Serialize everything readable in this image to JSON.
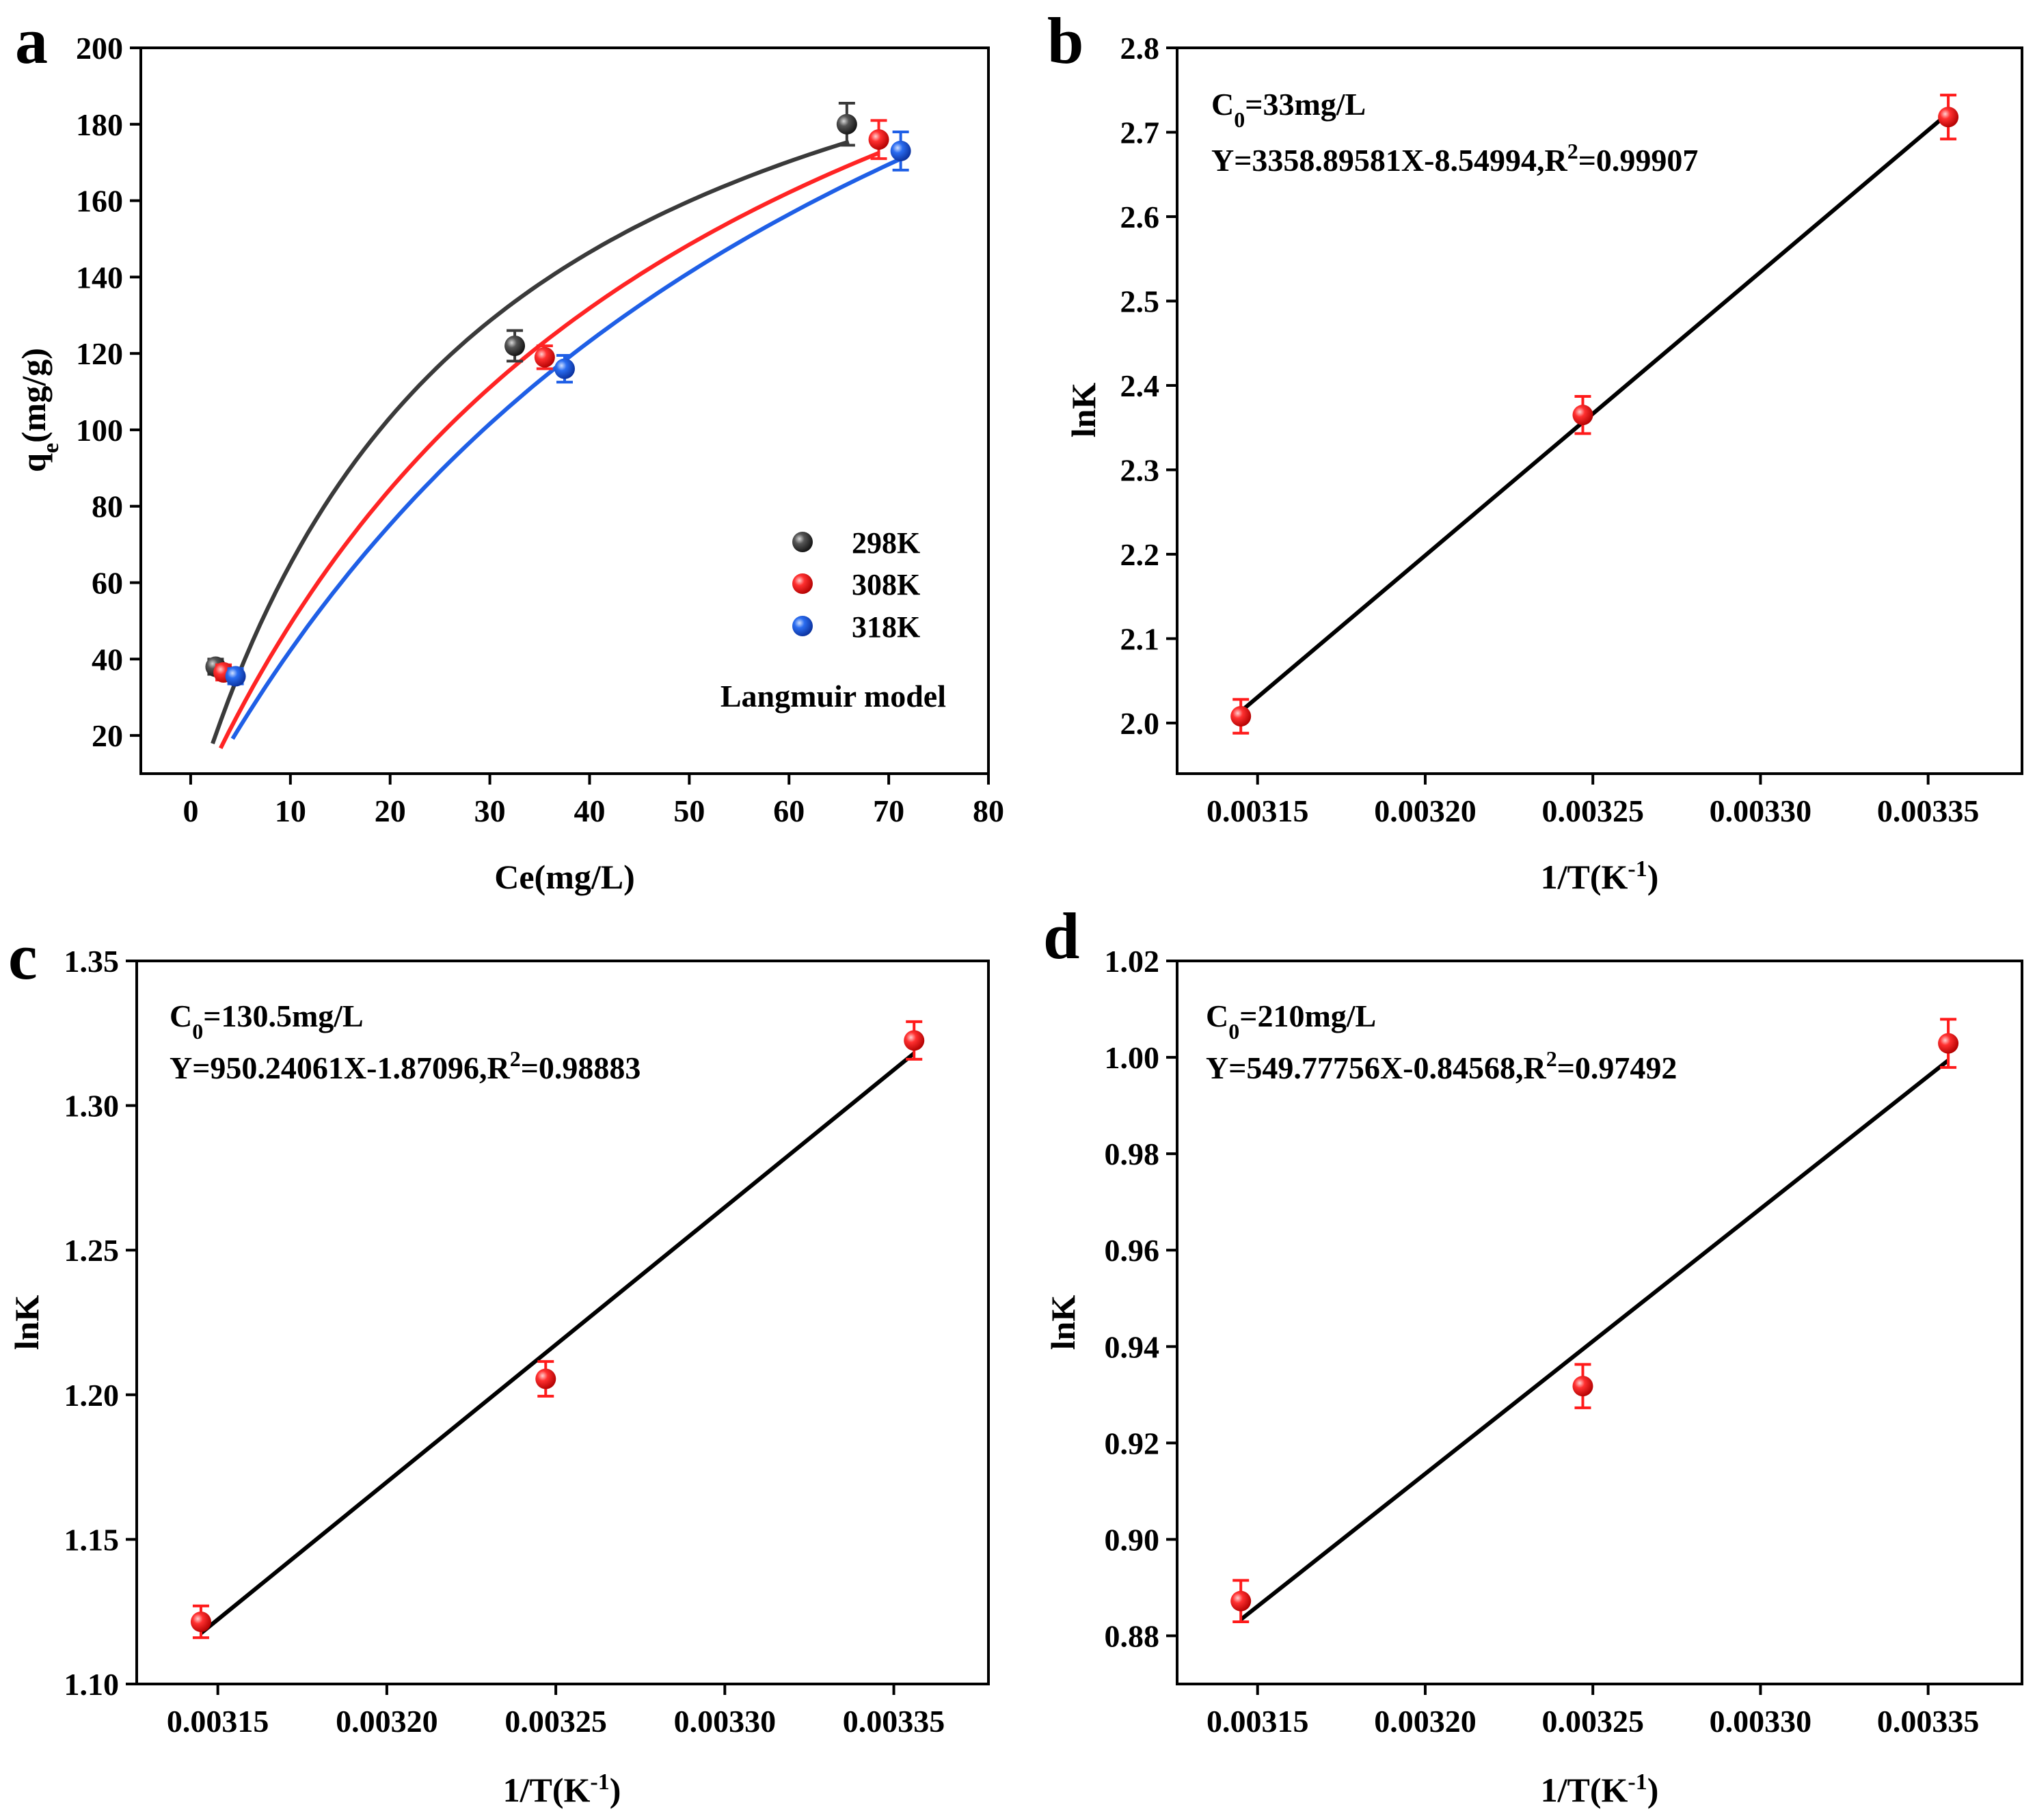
{
  "chart_data": [
    {
      "panel": "a",
      "type": "scatter",
      "xlabel": "Ce(mg/L)",
      "ylabel": "qe(mg/g)",
      "ylabel_main": "q",
      "ylabel_sub": "e",
      "ylabel_rest": "(mg/g)",
      "xlim": [
        -5,
        80
      ],
      "ylim": [
        10,
        200
      ],
      "xticks": [
        "0",
        "10",
        "20",
        "30",
        "40",
        "50",
        "60",
        "70",
        "80"
      ],
      "yticks": [
        "20",
        "40",
        "60",
        "80",
        "100",
        "120",
        "140",
        "160",
        "180",
        "200"
      ],
      "annotation": "Langmuir model",
      "series": [
        {
          "name": "298K",
          "color": "#3a3a3a",
          "x": [
            2.5,
            32.5,
            65.8
          ],
          "y": [
            38,
            122,
            180
          ],
          "err": [
            2,
            4,
            5.5
          ],
          "fit": {
            "model": "langmuir",
            "qm": 252,
            "KL": 0.0347,
            "x_range": [
              2.2,
              66
            ]
          }
        },
        {
          "name": "308K",
          "color": "#ff2424",
          "x": [
            3.3,
            35.5,
            69
          ],
          "y": [
            36.5,
            119,
            176
          ],
          "err": [
            2,
            3,
            5
          ],
          "fit": {
            "model": "langmuir",
            "qm": 300,
            "KL": 0.0196,
            "x_range": [
              3.0,
              69
            ]
          }
        },
        {
          "name": "318K",
          "color": "#1f5fe6",
          "x": [
            4.5,
            37.5,
            71.2
          ],
          "y": [
            35.5,
            116,
            173
          ],
          "err": [
            2,
            3.5,
            5
          ],
          "fit": {
            "model": "langmuir",
            "qm": 340,
            "KL": 0.0142,
            "x_range": [
              4.2,
              71
            ]
          }
        }
      ]
    },
    {
      "panel": "b",
      "type": "scatter",
      "xlabel": "1/T(K-1)",
      "xlabel_main": "1/T(K",
      "xlabel_sup": "-1",
      "xlabel_close": ")",
      "ylabel": "lnK",
      "xlim": [
        0.003126,
        0.003378
      ],
      "ylim": [
        1.94,
        2.8
      ],
      "xticks": [
        "0.00315",
        "0.00320",
        "0.00325",
        "0.00330",
        "0.00335"
      ],
      "yticks": [
        "2.0",
        "2.1",
        "2.2",
        "2.3",
        "2.4",
        "2.5",
        "2.6",
        "2.7",
        "2.8"
      ],
      "c0_main": "C",
      "c0_sub": "0",
      "c0_value": "=33mg/L",
      "eq_text": "Y=3358.89581X-8.54994,R",
      "eq_sup": "2",
      "eq_value": "=0.99907",
      "point_color": "#ff1a1a",
      "x": [
        0.003145,
        0.003247,
        0.003356
      ],
      "y": [
        2.008,
        2.365,
        2.718
      ],
      "err": [
        0.02,
        0.022,
        0.026
      ],
      "fit": {
        "slope": 3358.89581,
        "intercept": -8.54994
      }
    },
    {
      "panel": "c",
      "type": "scatter",
      "xlabel": "1/T(K-1)",
      "xlabel_main": "1/T(K",
      "xlabel_sup": "-1",
      "xlabel_close": ")",
      "ylabel": "lnK",
      "xlim": [
        0.003126,
        0.003378
      ],
      "ylim": [
        1.1,
        1.35
      ],
      "xticks": [
        "0.00315",
        "0.00320",
        "0.00325",
        "0.00330",
        "0.00335"
      ],
      "yticks": [
        "1.10",
        "1.15",
        "1.20",
        "1.25",
        "1.30",
        "1.35"
      ],
      "c0_main": "C",
      "c0_sub": "0",
      "c0_value": "=130.5mg/L",
      "eq_text": "Y=950.24061X-1.87096,R",
      "eq_sup": "2",
      "eq_value": "=0.98883",
      "point_color": "#ff1a1a",
      "x": [
        0.003145,
        0.003247,
        0.003356
      ],
      "y": [
        1.1215,
        1.2055,
        1.3225
      ],
      "err": [
        0.0055,
        0.006,
        0.0065
      ],
      "fit": {
        "slope": 950.24061,
        "intercept": -1.87096
      }
    },
    {
      "panel": "d",
      "type": "scatter",
      "xlabel": "1/T(K-1)",
      "xlabel_main": "1/T(K",
      "xlabel_sup": "-1",
      "xlabel_close": ")",
      "ylabel": "lnK",
      "xlim": [
        0.003126,
        0.003378
      ],
      "ylim": [
        0.87,
        1.02
      ],
      "xticks": [
        "0.00315",
        "0.00320",
        "0.00325",
        "0.00330",
        "0.00335"
      ],
      "yticks": [
        "0.88",
        "0.90",
        "0.92",
        "0.94",
        "0.96",
        "0.98",
        "1.00",
        "1.02"
      ],
      "c0_main": "C",
      "c0_sub": "0",
      "c0_value": "=210mg/L",
      "eq_text": "Y=549.77756X-0.84568,R",
      "eq_sup": "2",
      "eq_value": "=0.97492",
      "point_color": "#ff1a1a",
      "x": [
        0.003145,
        0.003247,
        0.003356
      ],
      "y": [
        0.8872,
        0.9318,
        1.0029
      ],
      "err": [
        0.0043,
        0.0045,
        0.005
      ],
      "fit": {
        "slope": 549.77756,
        "intercept": -0.84568
      }
    }
  ]
}
